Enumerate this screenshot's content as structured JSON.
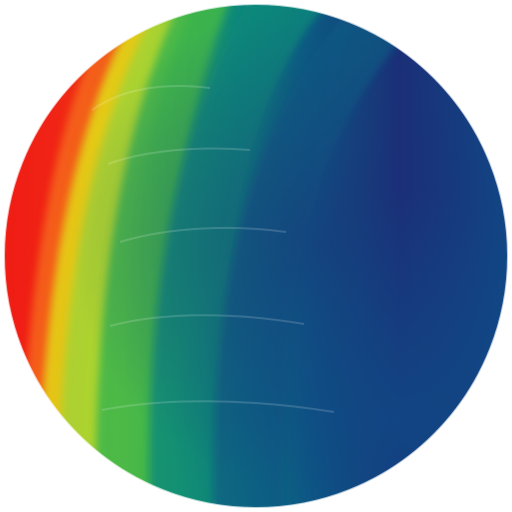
{
  "artwork": {
    "icon": "painted-gradient-disc",
    "palette": {
      "red": "#f01a12",
      "orange": "#f56a1f",
      "yellow": "#e2dc16",
      "lime": "#a4d236",
      "green": "#3fb54c",
      "teal": "#0e8a7a",
      "steel": "#0b5e84",
      "navy": "#1b2f78",
      "deep_blue": "#0f4a86",
      "background": "#ffffff"
    }
  }
}
